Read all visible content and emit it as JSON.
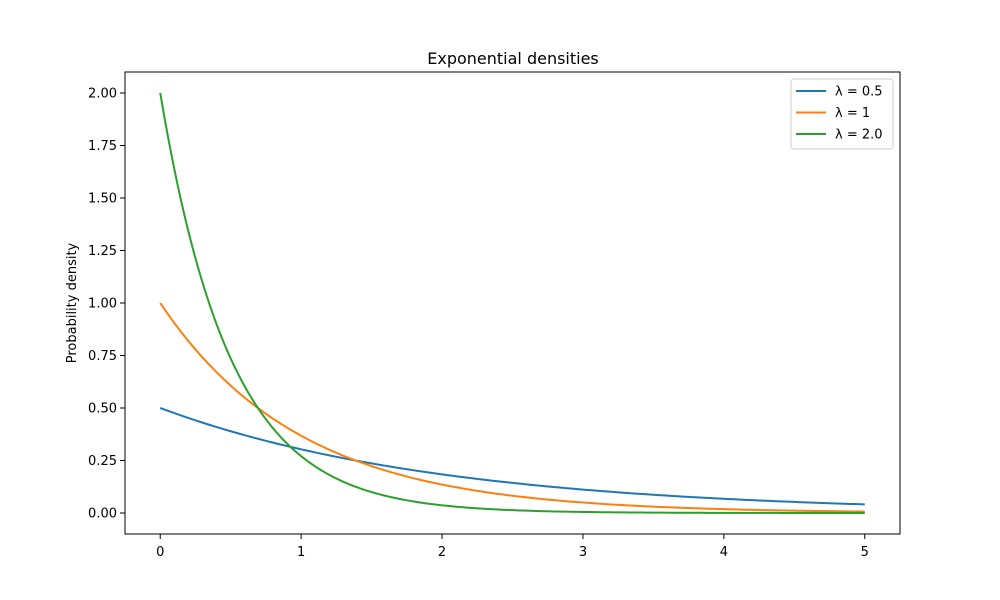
{
  "chart_data": {
    "type": "line",
    "title": "Exponential densities",
    "xlabel": "",
    "ylabel": "Probability density",
    "xlim": [
      -0.25,
      5.25
    ],
    "ylim": [
      -0.1,
      2.1
    ],
    "x_ticks": [
      "0",
      "1",
      "2",
      "3",
      "4",
      "5"
    ],
    "y_ticks": [
      "0.00",
      "0.25",
      "0.50",
      "0.75",
      "1.00",
      "1.25",
      "1.50",
      "1.75",
      "2.00"
    ],
    "grid": false,
    "legend_position": "top-right",
    "x": [
      0,
      0.25,
      0.5,
      0.75,
      1,
      1.25,
      1.5,
      1.75,
      2,
      2.25,
      2.5,
      2.75,
      3,
      3.25,
      3.5,
      3.75,
      4,
      4.25,
      4.5,
      4.75,
      5
    ],
    "series": [
      {
        "name": "λ = 0.5",
        "color": "#1f77b4",
        "values": [
          0.5,
          0.441,
          0.389,
          0.344,
          0.303,
          0.268,
          0.236,
          0.208,
          0.184,
          0.162,
          0.143,
          0.126,
          0.112,
          0.098,
          0.087,
          0.077,
          0.068,
          0.06,
          0.053,
          0.047,
          0.041
        ]
      },
      {
        "name": "λ = 1",
        "color": "#ff7f0e",
        "values": [
          1.0,
          0.779,
          0.607,
          0.472,
          0.368,
          0.287,
          0.223,
          0.174,
          0.135,
          0.105,
          0.082,
          0.064,
          0.05,
          0.039,
          0.03,
          0.024,
          0.018,
          0.014,
          0.011,
          0.009,
          0.007
        ]
      },
      {
        "name": "λ = 2.0",
        "color": "#2ca02c",
        "values": [
          2.0,
          1.213,
          0.736,
          0.446,
          0.271,
          0.164,
          0.1,
          0.06,
          0.037,
          0.022,
          0.013,
          0.008,
          0.005,
          0.003,
          0.002,
          0.001,
          0.001,
          0.0,
          0.0,
          0.0,
          0.0
        ]
      }
    ]
  }
}
